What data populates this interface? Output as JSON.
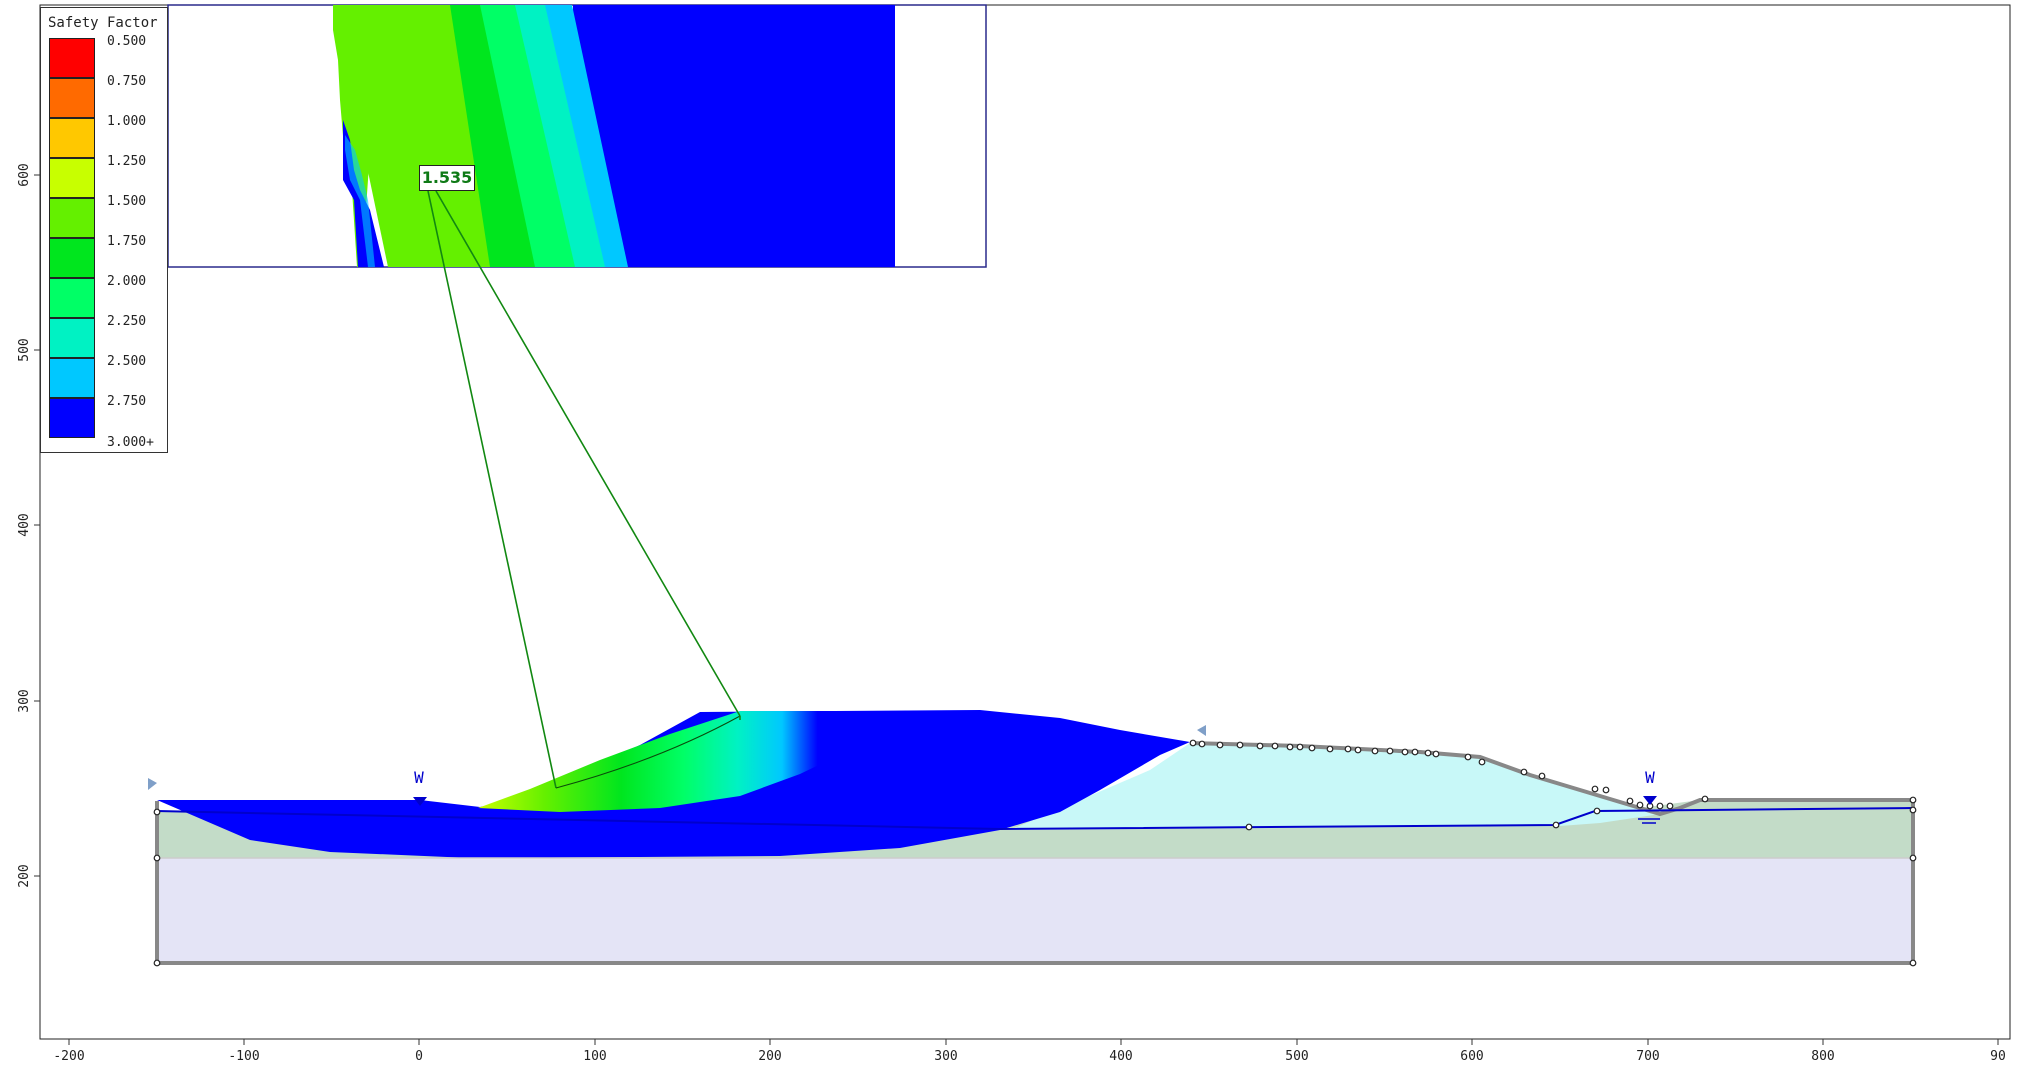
{
  "legend": {
    "title": "Safety Factor",
    "entries": [
      {
        "label": "0.500",
        "color": "#ff0000"
      },
      {
        "label": "0.750",
        "color": "#ff6a00"
      },
      {
        "label": "1.000",
        "color": "#ffc800"
      },
      {
        "label": "1.250",
        "color": "#c8ff00"
      },
      {
        "label": "1.500",
        "color": "#64f000"
      },
      {
        "label": "1.750",
        "color": "#00e61e"
      },
      {
        "label": "2.000",
        "color": "#00ff66"
      },
      {
        "label": "2.250",
        "color": "#00f2c3"
      },
      {
        "label": "2.500",
        "color": "#00c8ff"
      },
      {
        "label": "2.750",
        "color": "#0000ff"
      }
    ],
    "last_label": "3.000+"
  },
  "critical_fs": "1.535",
  "water_markers": [
    "W",
    "W"
  ],
  "axes": {
    "x_ticks": [
      "-200",
      "-100",
      "0",
      "100",
      "200",
      "300",
      "400",
      "500",
      "600",
      "700",
      "800",
      "90"
    ],
    "y_ticks": [
      "600",
      "500",
      "400",
      "300",
      "200"
    ]
  },
  "colors": {
    "grid_zone": "#0000ff",
    "upper_material": "#c8f8f8",
    "middle_material": "#c3dcc8",
    "lower_material": "#e4e4f6",
    "water_table": "#0000cc",
    "slip_line": "#118811",
    "boundary": "#888888"
  }
}
